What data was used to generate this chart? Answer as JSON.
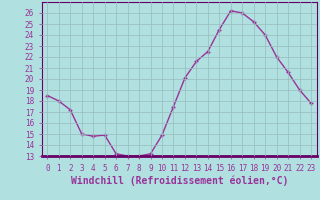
{
  "x": [
    0,
    1,
    2,
    3,
    4,
    5,
    6,
    7,
    8,
    9,
    10,
    11,
    12,
    13,
    14,
    15,
    16,
    17,
    18,
    19,
    20,
    21,
    22,
    23
  ],
  "y": [
    18.5,
    18.0,
    17.2,
    15.0,
    14.8,
    14.9,
    13.2,
    13.0,
    13.0,
    13.2,
    14.9,
    17.5,
    20.1,
    21.6,
    22.5,
    24.5,
    26.2,
    26.0,
    25.2,
    24.0,
    22.0,
    20.6,
    19.0,
    17.8
  ],
  "line_color": "#993399",
  "marker": "+",
  "background_color": "#b0e0e0",
  "grid_color": "#99bbbb",
  "xlabel": "Windchill (Refroidissement éolien,°C)",
  "ylim": [
    13,
    27
  ],
  "yticks": [
    13,
    14,
    15,
    16,
    17,
    18,
    19,
    20,
    21,
    22,
    23,
    24,
    25,
    26
  ],
  "xticks": [
    0,
    1,
    2,
    3,
    4,
    5,
    6,
    7,
    8,
    9,
    10,
    11,
    12,
    13,
    14,
    15,
    16,
    17,
    18,
    19,
    20,
    21,
    22,
    23
  ],
  "tick_label_fontsize": 5.5,
  "xlabel_fontsize": 7,
  "line_width": 1.0,
  "marker_size": 3.5,
  "spine_color": "#660066"
}
